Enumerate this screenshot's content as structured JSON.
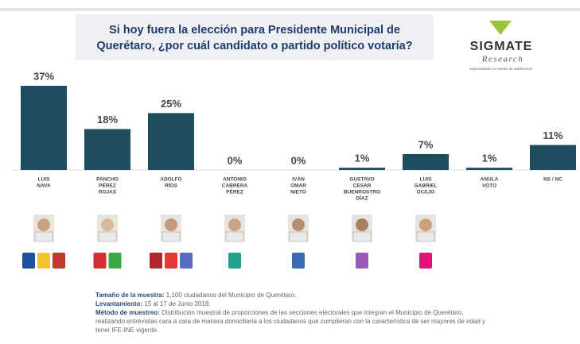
{
  "chart_data": {
    "type": "bar",
    "title": [
      "Si hoy fuera la elección para Presidente Municipal de",
      "Querétaro, ¿por cuál candidato o partido político votaría?"
    ],
    "categories": [
      [
        "LUIS",
        "NAVA"
      ],
      [
        "PANCHO",
        "PÉREZ",
        "ROJAS"
      ],
      [
        "ADOLFO",
        "RÍOS"
      ],
      [
        "ANTONIO",
        "CABRERA",
        "PÉREZ"
      ],
      [
        "IVÁN",
        "OMAR",
        "NIETO"
      ],
      [
        "GUSTAVO",
        "CESAR",
        "BUENROSTRO",
        "DÍAZ"
      ],
      [
        "LUIS",
        "GABRIEL",
        "OCEJO"
      ],
      [
        "ANULA",
        "VOTO"
      ],
      [
        "NS / NC"
      ]
    ],
    "values": [
      37,
      18,
      25,
      0,
      0,
      1,
      7,
      1,
      11
    ],
    "value_labels": [
      "37%",
      "18%",
      "25%",
      "0%",
      "0%",
      "1%",
      "7%",
      "1%",
      "11%"
    ],
    "color": "#1f4d5f"
  },
  "logo": {
    "name": "SIGMATE",
    "sub": "Research",
    "tagline": "Especialistas en niveles de satisfacción"
  },
  "notes": [
    {
      "label": "Tamaño de la muestra:",
      "text": " 1,100 ciudadanos del Municipio de Querétaro."
    },
    {
      "label": "Levantamiento:",
      "text": " 15 al 17 de Junio 2018."
    },
    {
      "label": "Método de muestreo:",
      "text": " Distribución muestral de proporciones de las secciones electorales que integran el Municipio de Querétaro, realizando entrevistas cara a cara de manera domiciliaria a los ciudadanos que cumplieran con la característica de ser mayores de edad y tener IFE-INE vigente."
    }
  ]
}
